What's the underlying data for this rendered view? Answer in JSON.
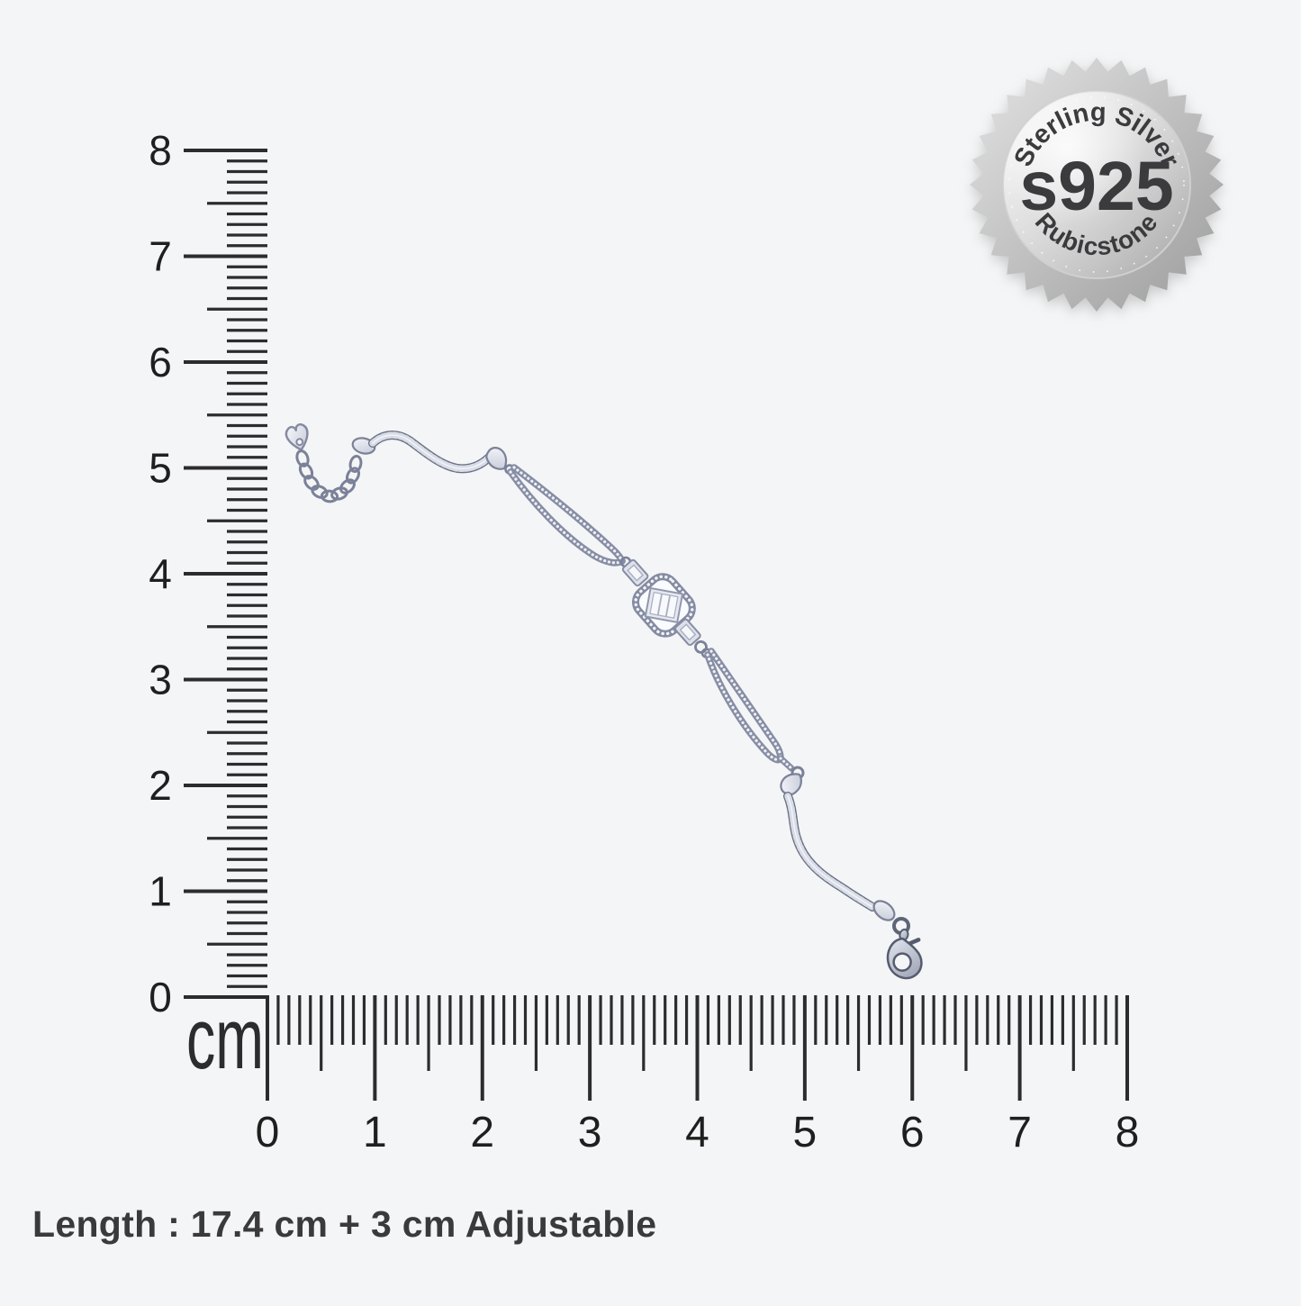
{
  "page": {
    "background": "#f4f5f6"
  },
  "caption": {
    "text": "Length : 17.4 cm + 3 cm Adjustable"
  },
  "badge": {
    "top_text": "Sterling Silver",
    "center_text": "s925",
    "bottom_text": "Rubicstone",
    "text_color": "#3a3a3c"
  },
  "rulers": {
    "unit_label": "cm",
    "vertical": {
      "min": 0,
      "max": 8,
      "ticks_per_cm": 10,
      "labels": [
        "0",
        "1",
        "2",
        "3",
        "4",
        "5",
        "6",
        "7",
        "8"
      ]
    },
    "horizontal": {
      "min": 0,
      "max": 8,
      "ticks_per_cm": 10,
      "labels": [
        "0",
        "1",
        "2",
        "3",
        "4",
        "5",
        "6",
        "7",
        "8"
      ]
    }
  },
  "colors": {
    "tick": "#2c2c2e",
    "label": "#1f1f1f",
    "caption_text": "#3a3a3c",
    "metal_light": "#eceef5",
    "metal_mid": "#8a90a6",
    "metal_dark": "#5f6578"
  }
}
